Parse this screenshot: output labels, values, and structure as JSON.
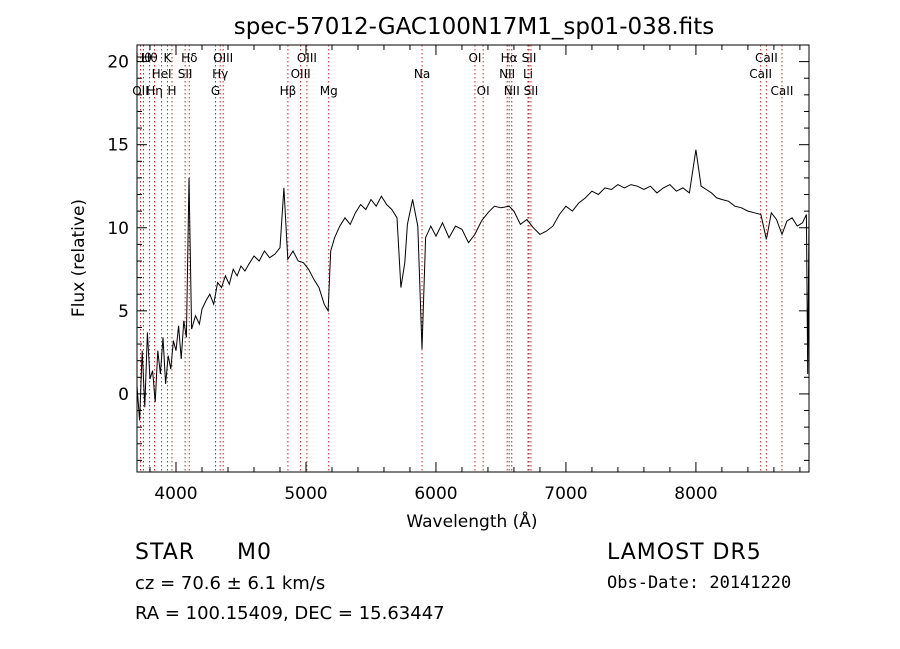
{
  "chart_data": {
    "type": "line",
    "title": "spec-57012-GAC100N17M1_sp01-038.fits",
    "xlabel": "Wavelength (Å)",
    "ylabel": "Flux (relative)",
    "xlim": [
      3700,
      8870
    ],
    "ylim": [
      -4.7,
      21.0
    ],
    "xticks": [
      4000,
      5000,
      6000,
      7000,
      8000
    ],
    "xtick_labels": [
      "4000",
      "5000",
      "6000",
      "7000",
      "8000"
    ],
    "yticks": [
      0,
      5,
      10,
      15,
      20
    ],
    "ytick_labels": [
      "0",
      "5",
      "10",
      "15",
      "20"
    ],
    "grid": false,
    "series": [
      {
        "x": [
          3700,
          3720,
          3740,
          3760,
          3780,
          3800,
          3820,
          3840,
          3860,
          3880,
          3900,
          3920,
          3940,
          3960,
          3980,
          4000,
          4020,
          4040,
          4060,
          4080,
          4100,
          4120,
          4150,
          4180,
          4200,
          4230,
          4260,
          4290,
          4320,
          4350,
          4380,
          4410,
          4440,
          4470,
          4500,
          4530,
          4560,
          4600,
          4640,
          4680,
          4720,
          4760,
          4800,
          4830,
          4860,
          4900,
          4940,
          4980,
          5020,
          5060,
          5100,
          5140,
          5170,
          5190,
          5220,
          5260,
          5300,
          5340,
          5380,
          5420,
          5460,
          5500,
          5540,
          5580,
          5620,
          5660,
          5700,
          5730,
          5760,
          5780,
          5820,
          5860,
          5893,
          5920,
          5960,
          6000,
          6050,
          6100,
          6150,
          6200,
          6250,
          6300,
          6350,
          6400,
          6450,
          6500,
          6563,
          6600,
          6650,
          6700,
          6750,
          6800,
          6850,
          6900,
          6950,
          7000,
          7050,
          7100,
          7150,
          7200,
          7250,
          7300,
          7350,
          7400,
          7450,
          7500,
          7550,
          7600,
          7650,
          7700,
          7750,
          7800,
          7850,
          7900,
          7950,
          8000,
          8040,
          8080,
          8120,
          8160,
          8200,
          8250,
          8300,
          8350,
          8400,
          8450,
          8500,
          8542,
          8580,
          8620,
          8662,
          8700,
          8740,
          8780,
          8820,
          8850,
          8860,
          8870
        ],
        "y": [
          0.5,
          -1.6,
          2.6,
          -0.8,
          3.7,
          0.9,
          1.4,
          -0.5,
          2.6,
          1.2,
          3.4,
          0.6,
          2.3,
          1.5,
          3.2,
          2.6,
          4.1,
          2.1,
          4.4,
          3.4,
          13.0,
          3.9,
          4.7,
          4.2,
          5.1,
          5.6,
          6.0,
          5.4,
          6.7,
          6.4,
          7.1,
          6.6,
          7.5,
          7.1,
          7.7,
          7.4,
          7.8,
          8.3,
          8.0,
          8.6,
          8.2,
          8.4,
          8.8,
          12.4,
          8.1,
          8.6,
          8.0,
          7.9,
          7.5,
          6.9,
          6.4,
          5.4,
          5.0,
          8.6,
          9.4,
          10.1,
          10.6,
          10.2,
          10.9,
          11.4,
          11.1,
          11.7,
          11.3,
          11.9,
          11.4,
          11.1,
          10.6,
          6.4,
          7.9,
          10.2,
          11.7,
          10.1,
          2.7,
          9.4,
          10.1,
          9.5,
          10.3,
          9.4,
          10.1,
          9.9,
          9.1,
          9.6,
          10.4,
          10.9,
          11.3,
          11.2,
          11.3,
          11.0,
          10.2,
          10.5,
          10.0,
          9.6,
          9.8,
          10.1,
          10.8,
          11.3,
          11.0,
          11.5,
          11.8,
          12.2,
          12.0,
          12.4,
          12.3,
          12.6,
          12.4,
          12.6,
          12.5,
          12.3,
          12.5,
          12.1,
          12.4,
          12.6,
          12.2,
          12.4,
          12.1,
          14.7,
          12.5,
          12.3,
          12.1,
          11.8,
          11.7,
          11.6,
          11.3,
          11.2,
          11.0,
          10.9,
          10.8,
          9.3,
          10.9,
          10.5,
          9.6,
          10.4,
          10.6,
          10.1,
          10.3,
          10.8,
          1.2,
          10.7
        ]
      }
    ],
    "lines": [
      {
        "w": 3727,
        "label": "OII",
        "tier": 2
      },
      {
        "w": 3750,
        "label": "Hθ",
        "tier": 0
      },
      {
        "w": 3797,
        "label": "Hθ",
        "tier": 0
      },
      {
        "w": 3835,
        "label": "Hη",
        "tier": 2
      },
      {
        "w": 3889,
        "label": "HeI",
        "tier": 1
      },
      {
        "w": 3934,
        "label": "K",
        "tier": 0
      },
      {
        "w": 3969,
        "label": "H",
        "tier": 2
      },
      {
        "w": 4070,
        "label": "SII",
        "tier": 1
      },
      {
        "w": 4102,
        "label": "Hδ",
        "tier": 0
      },
      {
        "w": 4304,
        "label": "G",
        "tier": 2
      },
      {
        "w": 4340,
        "label": "Hγ",
        "tier": 1
      },
      {
        "w": 4363,
        "label": "OIII",
        "tier": 0
      },
      {
        "w": 4861,
        "label": "Hβ",
        "tier": 2
      },
      {
        "w": 4959,
        "label": "OIII",
        "tier": 1
      },
      {
        "w": 5007,
        "label": "OIII",
        "tier": 0
      },
      {
        "w": 5175,
        "label": "Mg",
        "tier": 2
      },
      {
        "w": 5893,
        "label": "Na",
        "tier": 1
      },
      {
        "w": 6300,
        "label": "OI",
        "tier": 0
      },
      {
        "w": 6363,
        "label": "OI",
        "tier": 2
      },
      {
        "w": 6548,
        "label": "NII",
        "tier": 1
      },
      {
        "w": 6563,
        "label": "Hα",
        "tier": 0
      },
      {
        "w": 6583,
        "label": "NII",
        "tier": 2
      },
      {
        "w": 6708,
        "label": "Li",
        "tier": 1
      },
      {
        "w": 6716,
        "label": "SII",
        "tier": 0
      },
      {
        "w": 6731,
        "label": "SII",
        "tier": 2
      },
      {
        "w": 8498,
        "label": "CaII",
        "tier": 1
      },
      {
        "w": 8542,
        "label": "CaII",
        "tier": 0
      },
      {
        "w": 8662,
        "label": "CaII",
        "tier": 2
      }
    ],
    "line_color": "#b03030"
  },
  "info": {
    "class_label": "STAR",
    "subclass": "M0",
    "survey": "LAMOST DR5",
    "velocity": "cz = 70.6 ± 6.1 km/s",
    "obs_date": "Obs-Date: 20141220",
    "coords": "RA = 100.15409, DEC =  15.63447"
  }
}
